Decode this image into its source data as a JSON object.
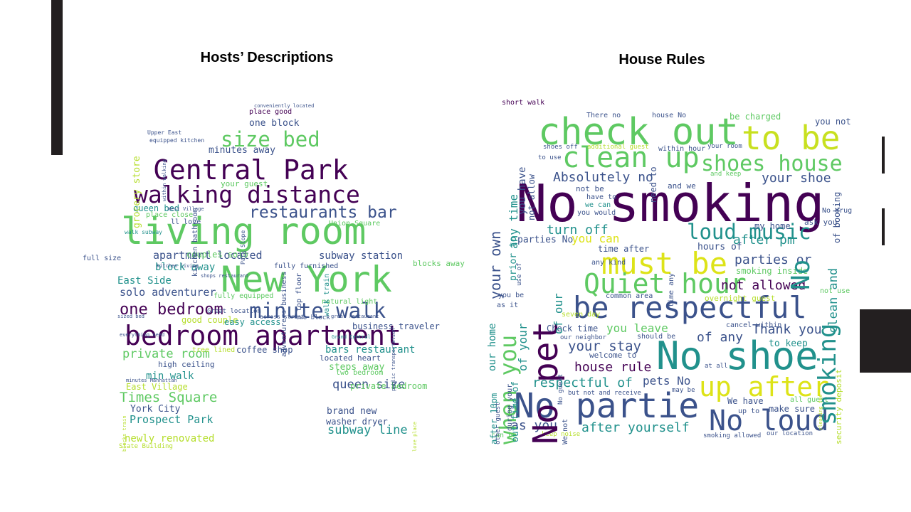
{
  "slide": {
    "left_title": "Hosts’ Descriptions",
    "right_title": "House Rules"
  },
  "colors": {
    "accent_dark": "#231f20",
    "palette": [
      "#440154",
      "#3b528b",
      "#21918c",
      "#5ec962",
      "#fde725"
    ]
  },
  "host_words": [
    {
      "text": "living room",
      "c": "#5ec962"
    },
    {
      "text": "New York",
      "c": "#5ec962"
    },
    {
      "text": "bedroom apartment",
      "c": "#440154"
    },
    {
      "text": "Central Park",
      "c": "#440154"
    },
    {
      "text": "walking distance",
      "c": "#440154"
    },
    {
      "text": "minute walk",
      "c": "#3b528b"
    },
    {
      "text": "size bed",
      "c": "#5ec962"
    },
    {
      "text": "restaurants bar",
      "c": "#3b528b"
    },
    {
      "text": "one bedroom",
      "c": "#440154"
    },
    {
      "text": "Times Square",
      "c": "#5ec962"
    },
    {
      "text": "private room",
      "c": "#5ec962"
    },
    {
      "text": "queen size",
      "c": "#3b528b"
    },
    {
      "text": "subway line",
      "c": "#21918c"
    },
    {
      "text": "solo adventurer",
      "c": "#3b528b"
    },
    {
      "text": "apartment located",
      "c": "#3b528b"
    },
    {
      "text": "Prospect Park",
      "c": "#21918c"
    },
    {
      "text": "newly renovated",
      "c": "#b5de2b"
    },
    {
      "text": "block away",
      "c": "#21918c"
    },
    {
      "text": "East Side",
      "c": "#21918c"
    },
    {
      "text": "subway station",
      "c": "#3b528b"
    },
    {
      "text": "bars restaurant",
      "c": "#21918c"
    },
    {
      "text": "min walk",
      "c": "#21918c"
    },
    {
      "text": "York City",
      "c": "#3b528b"
    },
    {
      "text": "one block",
      "c": "#3b528b"
    },
    {
      "text": "minutes away",
      "c": "#3b528b"
    },
    {
      "text": "place good",
      "c": "#440154"
    },
    {
      "text": "queen bed",
      "c": "#21918c"
    },
    {
      "text": "couples solo",
      "c": "#5ec962"
    },
    {
      "text": "your guest",
      "c": "#5ec962"
    },
    {
      "text": "good couple",
      "c": "#b5de2b"
    },
    {
      "text": "easy access",
      "c": "#21918c"
    },
    {
      "text": "business traveler",
      "c": "#3b528b"
    },
    {
      "text": "coffee shop",
      "c": "#3b528b"
    },
    {
      "text": "steps away",
      "c": "#5ec962"
    },
    {
      "text": "private bedroom",
      "c": "#5ec962"
    },
    {
      "text": "brand new",
      "c": "#3b528b"
    },
    {
      "text": "washer dryer",
      "c": "#3b528b"
    },
    {
      "text": "East Village",
      "c": "#b5de2b"
    },
    {
      "text": "high ceiling",
      "c": "#3b528b"
    },
    {
      "text": "fully equipped",
      "c": "#5ec962"
    },
    {
      "text": "fully furnished",
      "c": "#3b528b"
    },
    {
      "text": "natural light",
      "c": "#5ec962"
    },
    {
      "text": "two bedroom",
      "c": "#5ec962"
    },
    {
      "text": "located heart",
      "c": "#3b528b"
    },
    {
      "text": "full size",
      "c": "#3b528b"
    },
    {
      "text": "grocery store",
      "c": "#b5de2b"
    },
    {
      "text": "short walk",
      "c": "#440154"
    },
    {
      "text": "walk train",
      "c": "#21918c"
    },
    {
      "text": "blocks away",
      "c": "#5ec962"
    },
    {
      "text": "ll love",
      "c": "#3b528b"
    },
    {
      "text": "Union Square",
      "c": "#5ec962"
    },
    {
      "text": "tree lined",
      "c": "#b5de2b"
    },
    {
      "text": "adventurers business",
      "c": "#3b528b"
    },
    {
      "text": "kitchen bathroom",
      "c": "#3b528b"
    },
    {
      "text": "place close",
      "c": "#5ec962"
    },
    {
      "text": "top floor",
      "c": "#3b528b"
    },
    {
      "text": "Great location",
      "c": "#3b528b"
    },
    {
      "text": "two block",
      "c": "#3b528b"
    },
    {
      "text": "State Building",
      "c": "#b5de2b"
    },
    {
      "text": "across street",
      "c": "#3b528b"
    },
    {
      "text": "equipped kitchen",
      "c": "#3b528b"
    },
    {
      "text": "walk subway",
      "c": "#21918c"
    },
    {
      "text": "Upper East",
      "c": "#3b528b"
    },
    {
      "text": "conveniently located",
      "c": "#3b528b"
    },
    {
      "text": "within walking",
      "c": "#3b528b"
    },
    {
      "text": "West Village",
      "c": "#3b528b"
    },
    {
      "text": "Park Slope",
      "c": "#3b528b"
    },
    {
      "text": "kitchen living",
      "c": "#3b528b"
    },
    {
      "text": "shops restaurant",
      "c": "#3b528b"
    },
    {
      "text": "everything need",
      "c": "#3b528b"
    },
    {
      "text": "minutes Manhattan",
      "c": "#3b528b"
    },
    {
      "text": "sized bed",
      "c": "#3b528b"
    },
    {
      "text": "great restaurant",
      "c": "#3b528b"
    },
    {
      "text": "Grand Central",
      "c": "#21918c"
    },
    {
      "text": "blocks train",
      "c": "#b5de2b"
    },
    {
      "text": "love place",
      "c": "#b5de2b"
    },
    {
      "text": "public transportation",
      "c": "#3b528b"
    }
  ],
  "rule_words": [
    {
      "text": "No smoking",
      "c": "#440154"
    },
    {
      "text": "check out",
      "c": "#5ec962"
    },
    {
      "text": "to be",
      "c": "#c8e020"
    },
    {
      "text": "clean up",
      "c": "#5ec962"
    },
    {
      "text": "shoes house",
      "c": "#5ec962"
    },
    {
      "text": "must be",
      "c": "#dde318"
    },
    {
      "text": "Quiet hour",
      "c": "#5ec962"
    },
    {
      "text": "be respectful",
      "c": "#3b528b"
    },
    {
      "text": "No shoe",
      "c": "#21918c"
    },
    {
      "text": "up after",
      "c": "#dde318"
    },
    {
      "text": "No partie",
      "c": "#3b528b"
    },
    {
      "text": "No loud",
      "c": "#3b528b"
    },
    {
      "text": "loud music",
      "c": "#21918c"
    },
    {
      "text": "Absolutely no",
      "c": "#3b528b"
    },
    {
      "text": "your shoe",
      "c": "#3b528b"
    },
    {
      "text": "turn off",
      "c": "#21918c"
    },
    {
      "text": "after pm",
      "c": "#21918c"
    },
    {
      "text": "parties or",
      "c": "#3b528b"
    },
    {
      "text": "not allowed",
      "c": "#440154"
    },
    {
      "text": "Thank you",
      "c": "#3b528b"
    },
    {
      "text": "to keep",
      "c": "#21918c"
    },
    {
      "text": "your stay",
      "c": "#3b528b"
    },
    {
      "text": "you leave",
      "c": "#5ec962"
    },
    {
      "text": "of any",
      "c": "#3b528b"
    },
    {
      "text": "house rule",
      "c": "#440154"
    },
    {
      "text": "respectful of",
      "c": "#21918c"
    },
    {
      "text": "pets No",
      "c": "#3b528b"
    },
    {
      "text": "after yourself",
      "c": "#21918c"
    },
    {
      "text": "as you",
      "c": "#3b528b"
    },
    {
      "text": "We have",
      "c": "#3b528b"
    },
    {
      "text": "make sure",
      "c": "#3b528b"
    },
    {
      "text": "you can",
      "c": "#dde318"
    },
    {
      "text": "parties No",
      "c": "#3b528b"
    },
    {
      "text": "Check time",
      "c": "#3b528b"
    },
    {
      "text": "time after",
      "c": "#3b528b"
    },
    {
      "text": "hours of",
      "c": "#3b528b"
    },
    {
      "text": "smoking inside",
      "c": "#5ec962"
    },
    {
      "text": "my home",
      "c": "#3b528b"
    },
    {
      "text": "be charged",
      "c": "#5ec962"
    },
    {
      "text": "you not",
      "c": "#3b528b"
    },
    {
      "text": "common area",
      "c": "#3b528b"
    },
    {
      "text": "welcome to",
      "c": "#3b528b"
    },
    {
      "text": "overnight guest",
      "c": "#b5de2b"
    },
    {
      "text": "seven day",
      "c": "#b5de2b"
    },
    {
      "text": "cancel within",
      "c": "#3b528b"
    },
    {
      "text": "ask you",
      "c": "#3b528b"
    },
    {
      "text": "No drug",
      "c": "#3b528b"
    },
    {
      "text": "not use",
      "c": "#5ec962"
    },
    {
      "text": "all guest",
      "c": "#5ec962"
    },
    {
      "text": "up to",
      "c": "#3b528b"
    },
    {
      "text": "our location",
      "c": "#3b528b"
    },
    {
      "text": "smoking allowed",
      "c": "#3b528b"
    },
    {
      "text": "keep noise",
      "c": "#b5de2b"
    },
    {
      "text": "can be",
      "c": "#5ec962"
    },
    {
      "text": "There no",
      "c": "#3b528b"
    },
    {
      "text": "house No",
      "c": "#3b528b"
    },
    {
      "text": "within hour",
      "c": "#3b528b"
    },
    {
      "text": "shoes off",
      "c": "#3b528b"
    },
    {
      "text": "additional guest",
      "c": "#b5de2b"
    },
    {
      "text": "your room",
      "c": "#3b528b"
    },
    {
      "text": "and keep",
      "c": "#5ec962"
    },
    {
      "text": "and we",
      "c": "#3b528b"
    },
    {
      "text": "not be",
      "c": "#3b528b"
    },
    {
      "text": "have to",
      "c": "#3b528b"
    },
    {
      "text": "we can",
      "c": "#21918c"
    },
    {
      "text": "you would",
      "c": "#3b528b"
    },
    {
      "text": "any kind",
      "c": "#3b528b"
    },
    {
      "text": "should be",
      "c": "#3b528b"
    },
    {
      "text": "our neighbor",
      "c": "#3b528b"
    },
    {
      "text": "at all",
      "c": "#3b528b"
    },
    {
      "text": "may be",
      "c": "#3b528b"
    },
    {
      "text": "but not and receive",
      "c": "#3b528b"
    },
    {
      "text": "you be",
      "c": "#3b528b"
    },
    {
      "text": "as it",
      "c": "#3b528b"
    },
    {
      "text": "to use",
      "c": "#3b528b"
    },
    {
      "text": "your own",
      "c": "#3b528b"
    },
    {
      "text": "any time",
      "c": "#21918c"
    },
    {
      "text": "you have",
      "c": "#3b528b"
    },
    {
      "text": "not allow",
      "c": "#3b528b"
    },
    {
      "text": "need to",
      "c": "#3b528b"
    },
    {
      "text": "prior to",
      "c": "#21918c"
    },
    {
      "text": "when you",
      "c": "#5ec962"
    },
    {
      "text": "No pet",
      "c": "#440154"
    },
    {
      "text": "our home",
      "c": "#21918c"
    },
    {
      "text": "of your",
      "c": "#21918c"
    },
    {
      "text": "out time of",
      "c": "#21918c"
    },
    {
      "text": "of our",
      "c": "#21918c"
    },
    {
      "text": "after 10pm",
      "c": "#21918c"
    },
    {
      "text": "smoking",
      "c": "#21918c"
    },
    {
      "text": "No",
      "c": "#21918c"
    },
    {
      "text": "clean and",
      "c": "#21918c"
    },
    {
      "text": "of booking",
      "c": "#3b528b"
    },
    {
      "text": "security deposit",
      "c": "#b5de2b"
    },
    {
      "text": "cleaning fee",
      "c": "#b5de2b"
    },
    {
      "text": "other guest",
      "c": "#3b528b"
    },
    {
      "text": "during your",
      "c": "#3b528b"
    },
    {
      "text": "No guest",
      "c": "#3b528b"
    },
    {
      "text": "We not",
      "c": "#3b528b"
    },
    {
      "text": "time any",
      "c": "#3b528b"
    },
    {
      "text": "use of",
      "c": "#3b528b"
    }
  ]
}
